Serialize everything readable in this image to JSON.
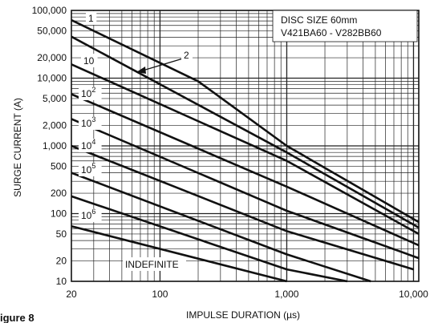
{
  "chart_data": {
    "type": "line",
    "x_scale": "log",
    "y_scale": "log",
    "xlim": [
      20,
      11000
    ],
    "ylim": [
      10,
      100000
    ],
    "xlabel": "IMPULSE DURATION (µs)",
    "ylabel": "SURGE CURRENT (A)",
    "x_ticks": [
      {
        "value": 20,
        "label": "20"
      },
      {
        "value": 100,
        "label": "100"
      },
      {
        "value": 1000,
        "label": "1,000"
      },
      {
        "value": 10000,
        "label": "10,000"
      }
    ],
    "y_ticks": [
      {
        "value": 100000,
        "label": "100,000"
      },
      {
        "value": 50000,
        "label": "50,000"
      },
      {
        "value": 20000,
        "label": "20,000"
      },
      {
        "value": 10000,
        "label": "10,000"
      },
      {
        "value": 5000,
        "label": "5,000"
      },
      {
        "value": 2000,
        "label": "2,000"
      },
      {
        "value": 1000,
        "label": "1,000"
      },
      {
        "value": 500,
        "label": "500"
      },
      {
        "value": 200,
        "label": "200"
      },
      {
        "value": 100,
        "label": "100"
      },
      {
        "value": 50,
        "label": "50"
      },
      {
        "value": 20,
        "label": "20"
      },
      {
        "value": 10,
        "label": "10"
      }
    ],
    "grid": true,
    "series": [
      {
        "label_base": "1",
        "label_exp": "",
        "points": [
          [
            20,
            72000
          ],
          [
            200,
            9000
          ],
          [
            1000,
            1000
          ],
          [
            11000,
            75
          ]
        ]
      },
      {
        "label_base": "",
        "label_exp": "",
        "points": [
          [
            20,
            41000
          ],
          [
            1000,
            800
          ],
          [
            11000,
            62
          ]
        ]
      },
      {
        "label_base": "10",
        "label_exp": "",
        "points": [
          [
            20,
            16000
          ],
          [
            1000,
            600
          ],
          [
            11000,
            50
          ]
        ]
      },
      {
        "label_base": "10",
        "label_exp": "2",
        "points": [
          [
            20,
            5800
          ],
          [
            1000,
            250
          ],
          [
            11000,
            34
          ]
        ]
      },
      {
        "label_base": "10",
        "label_exp": "3",
        "points": [
          [
            20,
            2500
          ],
          [
            1000,
            110
          ],
          [
            11000,
            22
          ]
        ]
      },
      {
        "label_base": "10",
        "label_exp": "4",
        "points": [
          [
            20,
            1000
          ],
          [
            1000,
            55
          ],
          [
            10000,
            15
          ]
        ]
      },
      {
        "label_base": "10",
        "label_exp": "5",
        "points": [
          [
            20,
            400
          ],
          [
            1000,
            25
          ],
          [
            4600,
            10
          ]
        ]
      },
      {
        "label_base": "10",
        "label_exp": "6",
        "points": [
          [
            20,
            180
          ],
          [
            1000,
            15
          ],
          [
            3000,
            10
          ]
        ]
      },
      {
        "label_base": "INDEFINITE",
        "label_exp": "",
        "points": [
          [
            20,
            65
          ],
          [
            1000,
            10
          ]
        ]
      }
    ],
    "annotations": [
      {
        "text": "DISC SIZE 60mm"
      },
      {
        "text": "V421BA60 - V282BB60"
      },
      {
        "text": "2"
      }
    ],
    "caption": "igure 8"
  }
}
